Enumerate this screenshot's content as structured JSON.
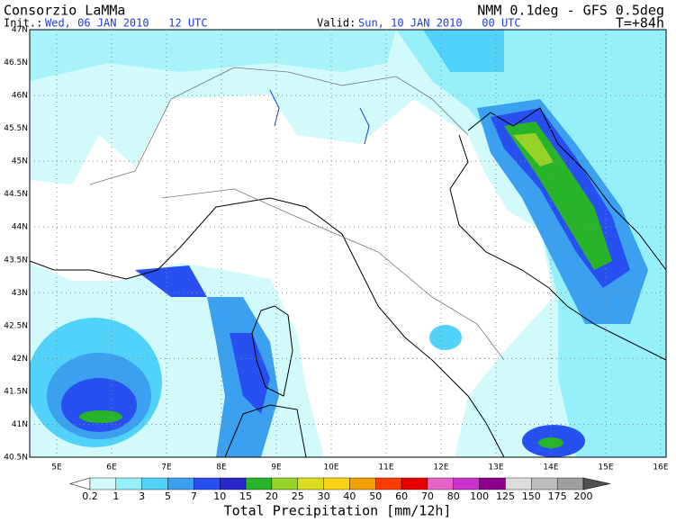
{
  "header": {
    "title": "Consorzio LaMMa",
    "init_label": "Init.:",
    "init_time": "Wed, 06 JAN 2010   12 UTC",
    "valid_label": "Valid:",
    "valid_time": "Sun, 10 JAN 2010   00 UTC",
    "model": "NMM 0.1deg - GFS 0.5deg",
    "lead": "T=+84h"
  },
  "map": {
    "lat_labels": [
      "47N",
      "46.5N",
      "46N",
      "45.5N",
      "45N",
      "44.5N",
      "44N",
      "43.5N",
      "43N",
      "42.5N",
      "42N",
      "41.5N",
      "41N",
      "40.5N"
    ],
    "lon_labels": [
      "5E",
      "6E",
      "7E",
      "8E",
      "9E",
      "10E",
      "11E",
      "12E",
      "13E",
      "14E",
      "15E",
      "16E"
    ]
  },
  "colorbar": {
    "title": "Total Precipitation [mm/12h]",
    "levels": [
      0.2,
      1,
      3,
      5,
      7,
      10,
      15,
      20,
      25,
      30,
      40,
      50,
      60,
      70,
      80,
      100,
      125,
      150,
      175,
      200
    ],
    "colors": [
      "#ffffff",
      "#d2fafa",
      "#96f0fa",
      "#50d2fa",
      "#3ca0f0",
      "#2850f0",
      "#2828c8",
      "#28b428",
      "#96d228",
      "#dcdc1e",
      "#fad214",
      "#f0a000",
      "#fa3c00",
      "#e60000",
      "#e664c8",
      "#c832c8",
      "#8c008c",
      "#dcdcdc",
      "#bebebe",
      "#a0a0a0",
      "#787878",
      "#505050"
    ]
  }
}
